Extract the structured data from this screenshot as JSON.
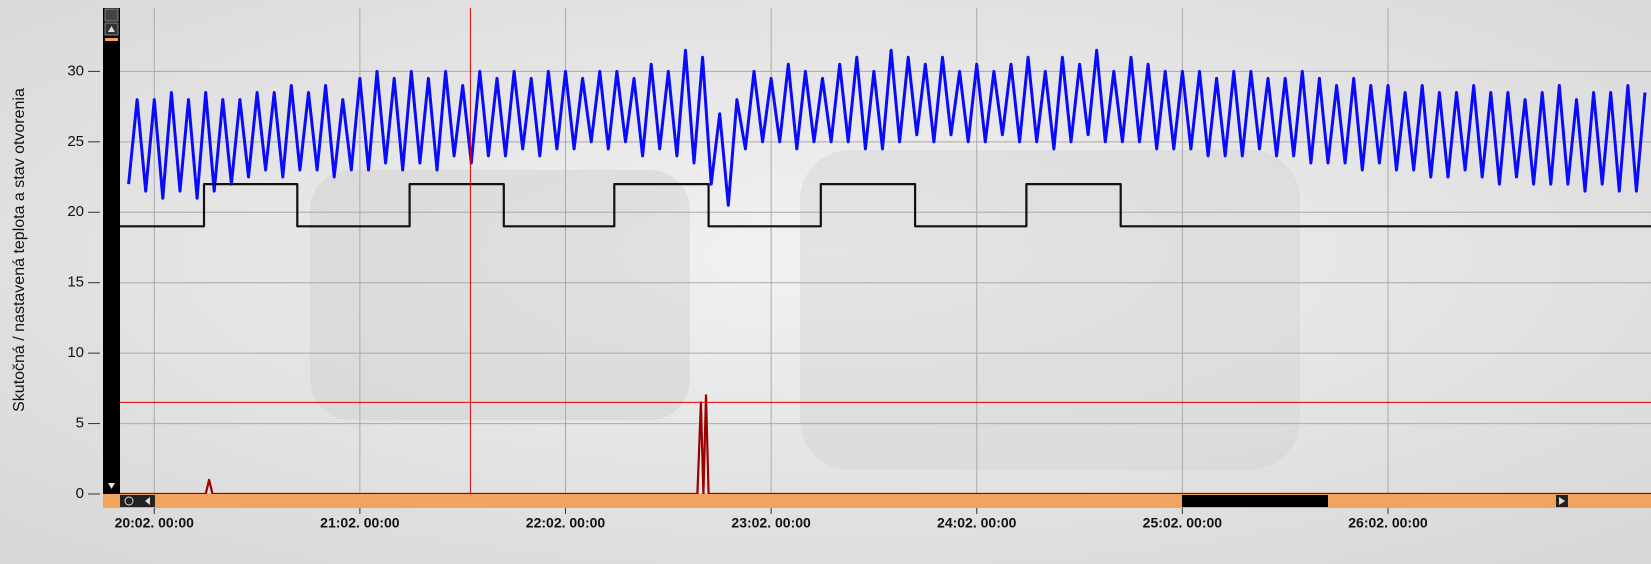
{
  "chart_data": {
    "type": "line",
    "y_label": "Skutočná / nastavená teplota a stav otvorenia",
    "xlim": [
      -4,
      174.7
    ],
    "ylim": [
      0,
      34.5
    ],
    "yticks": [
      0,
      5,
      10,
      15,
      20,
      25,
      30
    ],
    "xticks": [
      {
        "value": 0,
        "label": "20:02. 00:00"
      },
      {
        "value": 24,
        "label": "21:02. 00:00"
      },
      {
        "value": 48,
        "label": "22:02. 00:00"
      },
      {
        "value": 72,
        "label": "23:02. 00:00"
      },
      {
        "value": 96,
        "label": "24:02. 00:00"
      },
      {
        "value": 120,
        "label": "25:02. 00:00"
      },
      {
        "value": 144,
        "label": "26:02. 00:00"
      }
    ],
    "grid": true,
    "cursor": {
      "x": 36.9,
      "y": 6.5
    },
    "series": [
      {
        "color": "#0a0aff",
        "x": [
          -3,
          -2,
          -1,
          0,
          1,
          2,
          3,
          4,
          5,
          6,
          7,
          8,
          9,
          10,
          11,
          12,
          13,
          14,
          15,
          16,
          17,
          18,
          19,
          20,
          21,
          22,
          23,
          24,
          25,
          26,
          27,
          28,
          29,
          30,
          31,
          32,
          33,
          34,
          35,
          36,
          37,
          38,
          39,
          40,
          41,
          42,
          43,
          44,
          45,
          46,
          47,
          48,
          49,
          50,
          51,
          52,
          53,
          54,
          55,
          56,
          57,
          58,
          59,
          60,
          61,
          62,
          63,
          64,
          65,
          66,
          67,
          68,
          69,
          70,
          71,
          72,
          73,
          74,
          75,
          76,
          77,
          78,
          79,
          80,
          81,
          82,
          83,
          84,
          85,
          86,
          87,
          88,
          89,
          90,
          91,
          92,
          93,
          94,
          95,
          96,
          97,
          98,
          99,
          100,
          101,
          102,
          103,
          104,
          105,
          106,
          107,
          108,
          109,
          110,
          111,
          112,
          113,
          114,
          115,
          116,
          117,
          118,
          119,
          120,
          121,
          122,
          123,
          124,
          125,
          126,
          127,
          128,
          129,
          130,
          131,
          132,
          133,
          134,
          135,
          136,
          137,
          138,
          139,
          140,
          141,
          142,
          143,
          144,
          145,
          146,
          147,
          148,
          149,
          150,
          151,
          152,
          153,
          154,
          155,
          156,
          157,
          158,
          159,
          160,
          161,
          162,
          163,
          164,
          165,
          166,
          167,
          168,
          169,
          170,
          171,
          172,
          173,
          174
        ],
        "values": [
          22,
          28,
          21.5,
          28,
          21,
          28.5,
          21.5,
          28,
          21,
          28.5,
          21.5,
          28,
          22,
          28,
          22.5,
          28.5,
          23,
          28.5,
          22.5,
          29,
          23,
          28.5,
          23,
          29,
          22.5,
          28,
          23,
          29.5,
          23,
          30,
          23.5,
          29.5,
          23,
          30,
          23.5,
          29.5,
          23,
          30,
          24,
          29,
          23.5,
          30,
          24,
          29.5,
          24,
          30,
          24.5,
          29.5,
          24,
          30,
          24.5,
          30,
          24.5,
          29.5,
          25,
          30,
          24.5,
          30,
          25,
          29.5,
          24,
          30.5,
          24.5,
          30,
          24,
          31.5,
          23.5,
          31,
          22,
          27,
          20.5,
          28,
          24.5,
          30,
          25,
          29.5,
          25,
          30.5,
          24.5,
          30,
          25,
          29.5,
          25,
          30.5,
          25,
          31,
          24.5,
          30,
          24.5,
          31.5,
          25,
          31,
          25.5,
          30.5,
          25,
          31,
          25.5,
          30,
          25,
          30.5,
          25,
          30,
          25.5,
          30.5,
          25,
          31,
          25,
          30,
          24.5,
          31,
          25,
          30.5,
          25.5,
          31.5,
          25,
          30,
          25,
          31,
          25,
          30.5,
          24.5,
          30,
          24.5,
          30,
          24.5,
          30,
          24,
          29.5,
          24,
          30,
          24,
          30,
          24.5,
          29.5,
          24,
          29.5,
          24,
          30,
          23.5,
          29.5,
          23.5,
          29,
          23.5,
          29.5,
          23,
          29,
          23.5,
          29,
          23,
          28.5,
          23,
          29,
          22.5,
          28.5,
          22.5,
          28.5,
          23,
          29,
          22.5,
          28.5,
          22,
          28.5,
          22.5,
          28,
          22,
          28.5,
          22,
          29,
          22,
          28,
          21.5,
          28.5,
          22,
          28.5,
          21.5,
          29,
          21.5,
          28.5
        ]
      },
      {
        "color": "#111111",
        "x": [
          -4,
          5.8,
          5.8,
          16.7,
          16.7,
          29.8,
          29.8,
          40.8,
          40.8,
          53.7,
          53.7,
          64.7,
          64.7,
          77.8,
          77.8,
          88.8,
          88.8,
          101.8,
          101.8,
          112.8,
          112.8,
          174.7
        ],
        "values": [
          19,
          19,
          22,
          22,
          19,
          19,
          22,
          22,
          19,
          19,
          22,
          22,
          19,
          19,
          22,
          22,
          19,
          19,
          22,
          22,
          19,
          19
        ]
      },
      {
        "color": "#990000",
        "x": [
          -4,
          6,
          6.4,
          6.8,
          63.4,
          63.8,
          64.1,
          64.4,
          64.7,
          65,
          174.7
        ],
        "values": [
          0,
          0,
          1,
          0,
          0,
          6.5,
          0,
          7,
          0,
          0,
          0
        ]
      }
    ]
  }
}
